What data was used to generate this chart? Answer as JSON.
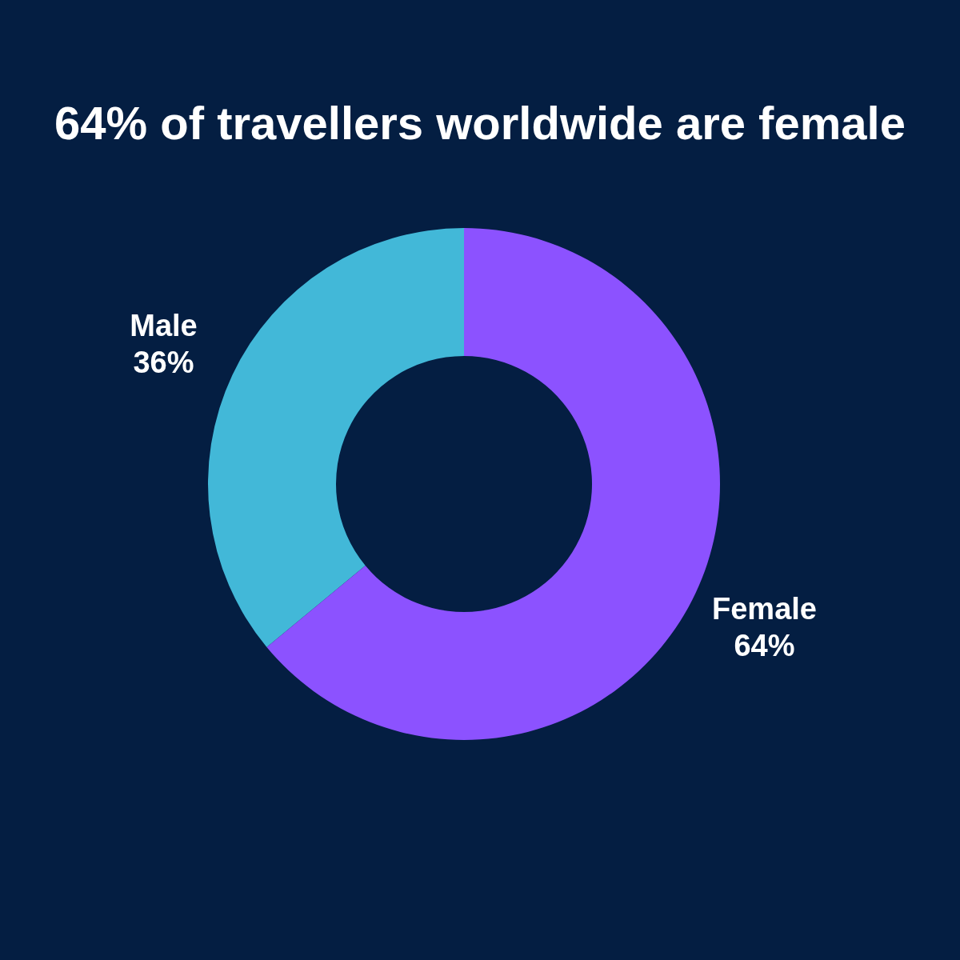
{
  "chart_data": {
    "type": "donut",
    "title": "64% of travellers worldwide are female",
    "categories": [
      "Male",
      "Female"
    ],
    "values": [
      36,
      64
    ],
    "colors": [
      "#42b8d8",
      "#8c52ff"
    ],
    "value_labels": [
      "36%",
      "64%"
    ]
  }
}
